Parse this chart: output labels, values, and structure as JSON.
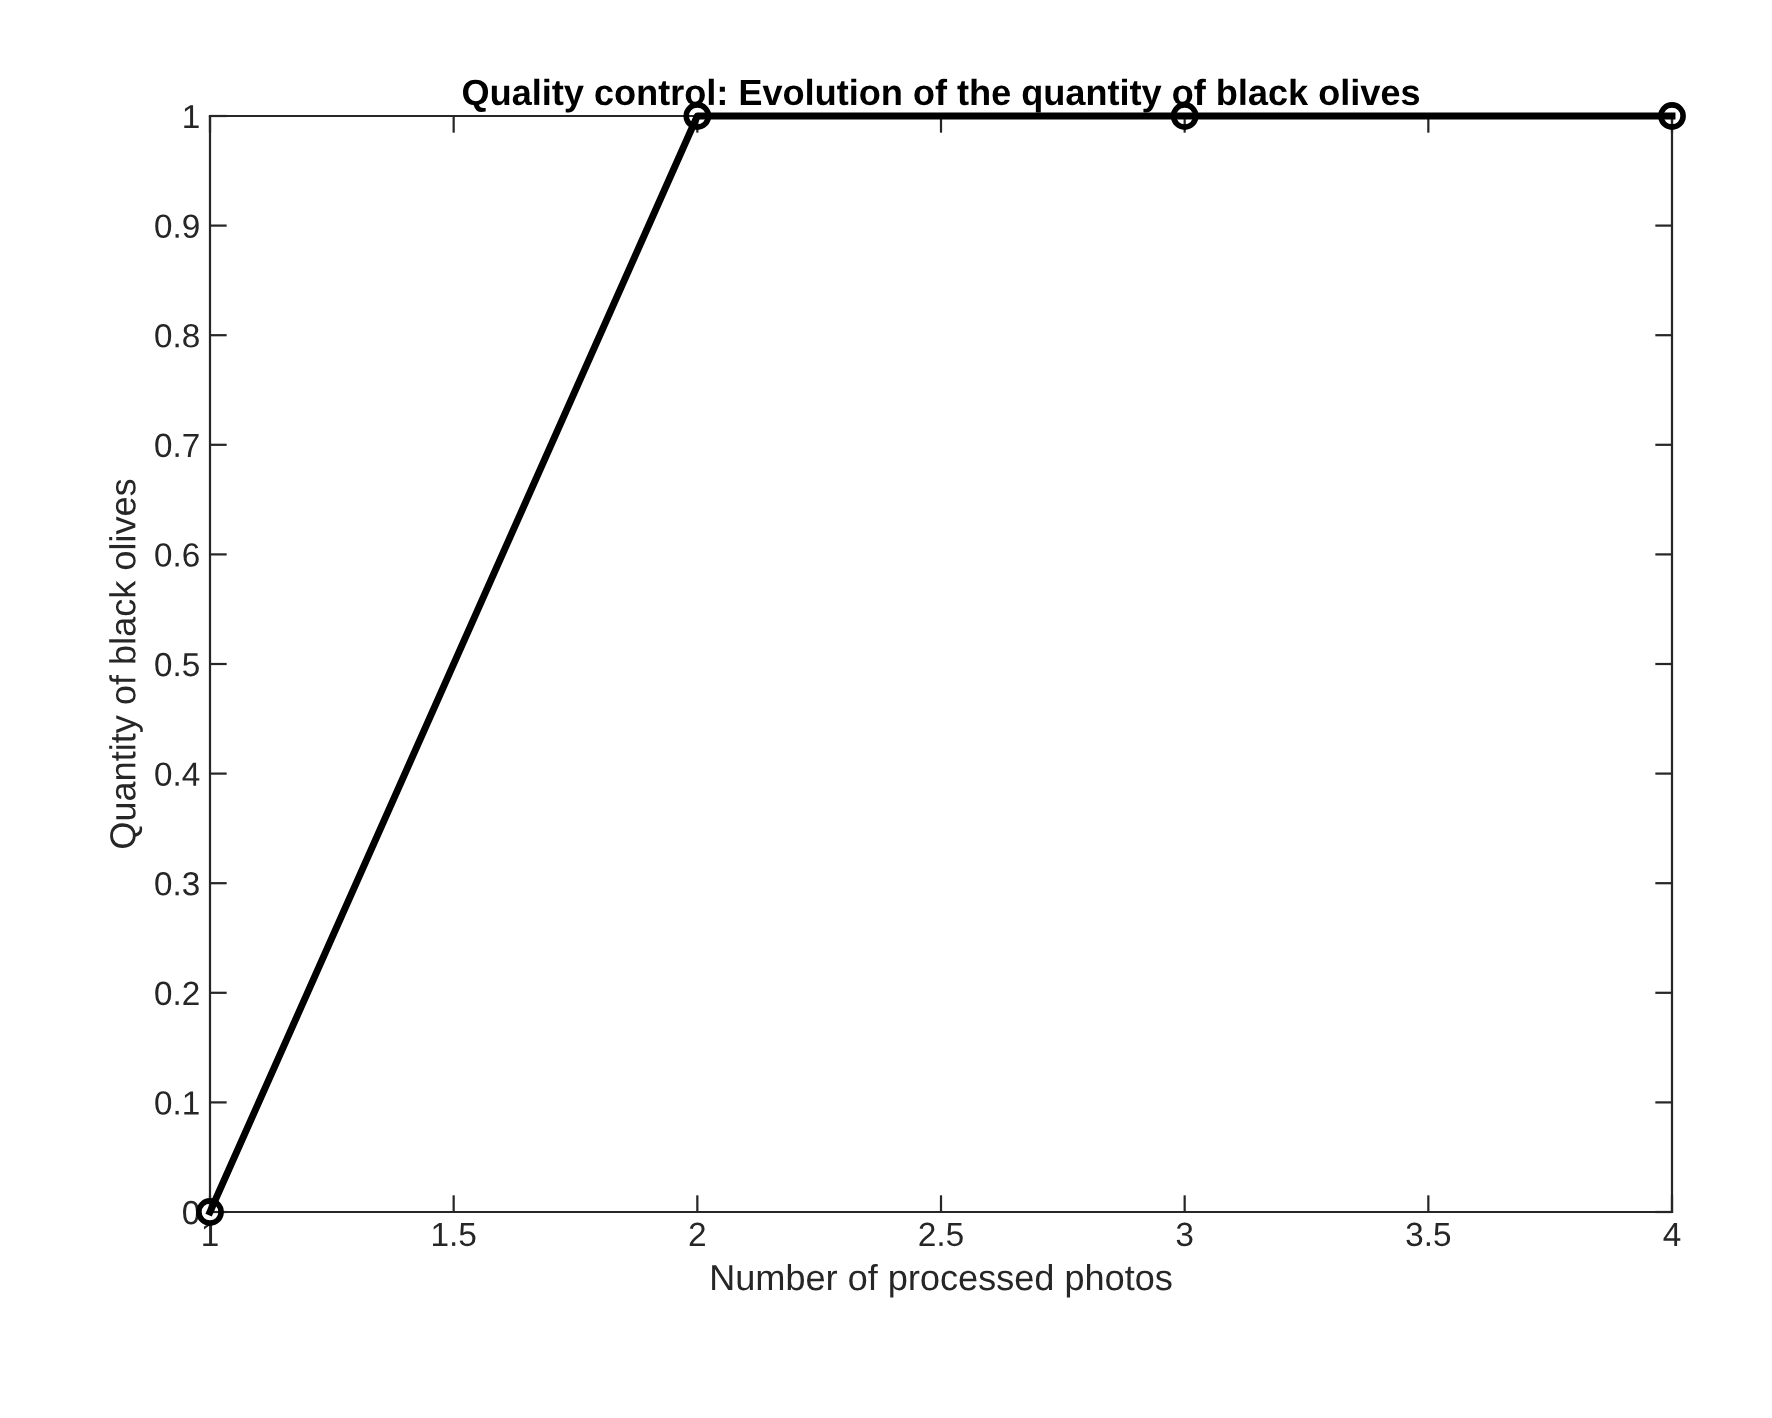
{
  "chart_data": {
    "type": "line",
    "title": "Quality control: Evolution of the quantity of black olives",
    "xlabel": "Number of processed photos",
    "ylabel": "Quantity of black olives",
    "x": [
      1,
      2,
      3,
      4
    ],
    "series": [
      {
        "color": "#000000",
        "values": [
          0,
          1,
          1,
          1
        ]
      }
    ],
    "xlim": [
      1,
      4
    ],
    "xticks": [
      1,
      1.5,
      2,
      2.5,
      3,
      3.5,
      4
    ],
    "ylim": [
      0,
      1
    ],
    "yticks": [
      0,
      0.1,
      0.2,
      0.3,
      0.4,
      0.5,
      0.6,
      0.7,
      0.8,
      0.9,
      1
    ],
    "marker": "circle",
    "line_style": "solid",
    "grid": false,
    "legend": false
  }
}
